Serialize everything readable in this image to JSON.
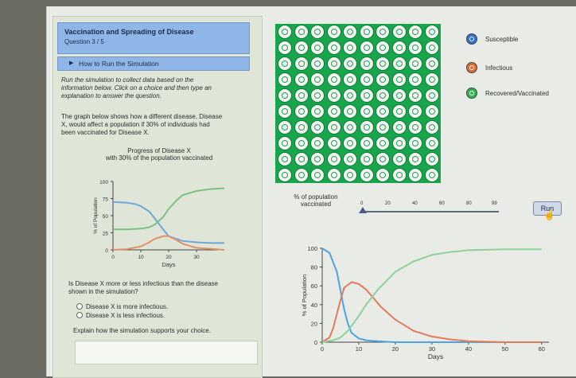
{
  "header": {
    "title": "Vaccination and Spreading of Disease",
    "question": "Question 3 / 5"
  },
  "howto": {
    "label": "How to Run the Simulation"
  },
  "instructions": {
    "line1": "Run the simulation to collect data based on the",
    "line2": "information below. Click on a choice and then type an",
    "line3": "explanation to answer the question."
  },
  "description": {
    "line1": "The graph below shows how a different disease, Disease",
    "line2": "X, would affect a population if 30% of individuals had",
    "line3": "been vaccinated for Disease X."
  },
  "question": {
    "line1": "Is Disease X more or less infectious than the disease",
    "line2": "shown in the simulation?",
    "choices": [
      "Disease X is more infectious.",
      "Disease X is less infectious."
    ],
    "explain_prompt": "Explain how the simulation supports your choice."
  },
  "legend": {
    "susceptible": "Susceptible",
    "infectious": "Infectious",
    "recovered": "Recovered/Vaccinated",
    "colors": {
      "susceptible": "#2f6fd6",
      "infectious": "#e06a2f",
      "recovered": "#2fb34a"
    }
  },
  "slider": {
    "label_line1": "% of population",
    "label_line2": "vaccinated",
    "ticks": [
      "0",
      "20",
      "40",
      "60",
      "80",
      "99"
    ],
    "value": 0
  },
  "run_button": {
    "label": "Run"
  },
  "chart_data": [
    {
      "type": "line",
      "title": "Progress of Disease X",
      "subtitle": "with 30% of the population vaccinated",
      "xlabel": "Days",
      "ylabel": "% of Population",
      "xticks": [
        "0",
        "10",
        "20",
        "30"
      ],
      "yticks": [
        "0",
        "25",
        "50",
        "75",
        "100"
      ],
      "xlim": [
        0,
        40
      ],
      "ylim": [
        0,
        100
      ],
      "series": [
        {
          "color": "#6ea7d8",
          "x": [
            0,
            5,
            8,
            10,
            13,
            15,
            18,
            20,
            25,
            30,
            35,
            40
          ],
          "y": [
            70,
            69,
            67,
            64,
            56,
            46,
            30,
            20,
            13,
            11,
            10,
            10
          ]
        },
        {
          "color": "#e0906a",
          "x": [
            0,
            5,
            10,
            13,
            15,
            18,
            20,
            23,
            25,
            30,
            40
          ],
          "y": [
            0,
            1,
            5,
            11,
            16,
            20,
            20,
            14,
            9,
            3,
            0
          ]
        },
        {
          "color": "#7ac183",
          "x": [
            0,
            5,
            10,
            13,
            15,
            18,
            20,
            23,
            25,
            30,
            35,
            40
          ],
          "y": [
            30,
            30,
            31,
            33,
            37,
            48,
            60,
            73,
            80,
            86,
            89,
            90
          ]
        }
      ]
    },
    {
      "type": "line",
      "xlabel": "Days",
      "ylabel": "% of Population",
      "xticks": [
        "0",
        "10",
        "20",
        "30",
        "40",
        "50",
        "60"
      ],
      "yticks": [
        "0",
        "20",
        "40",
        "60",
        "80",
        "100"
      ],
      "xlim": [
        0,
        62
      ],
      "ylim": [
        0,
        100
      ],
      "series": [
        {
          "color": "#4fa3e0",
          "x": [
            0,
            2,
            4,
            5,
            6,
            7,
            8,
            10,
            12,
            15,
            20,
            60
          ],
          "y": [
            100,
            95,
            75,
            55,
            35,
            20,
            10,
            4,
            2,
            1,
            0,
            0
          ]
        },
        {
          "color": "#e47a5a",
          "x": [
            0,
            2,
            3,
            4,
            5,
            6,
            8,
            10,
            12,
            14,
            16,
            20,
            25,
            30,
            35,
            40,
            50,
            60
          ],
          "y": [
            0,
            5,
            15,
            30,
            45,
            58,
            64,
            62,
            56,
            47,
            38,
            24,
            12,
            6,
            3,
            1,
            0,
            0
          ]
        },
        {
          "color": "#8fd19a",
          "x": [
            0,
            3,
            5,
            7,
            10,
            12,
            15,
            20,
            25,
            30,
            35,
            40,
            50,
            60
          ],
          "y": [
            0,
            2,
            5,
            12,
            28,
            40,
            55,
            75,
            86,
            93,
            96,
            98,
            99,
            99
          ]
        }
      ]
    }
  ]
}
